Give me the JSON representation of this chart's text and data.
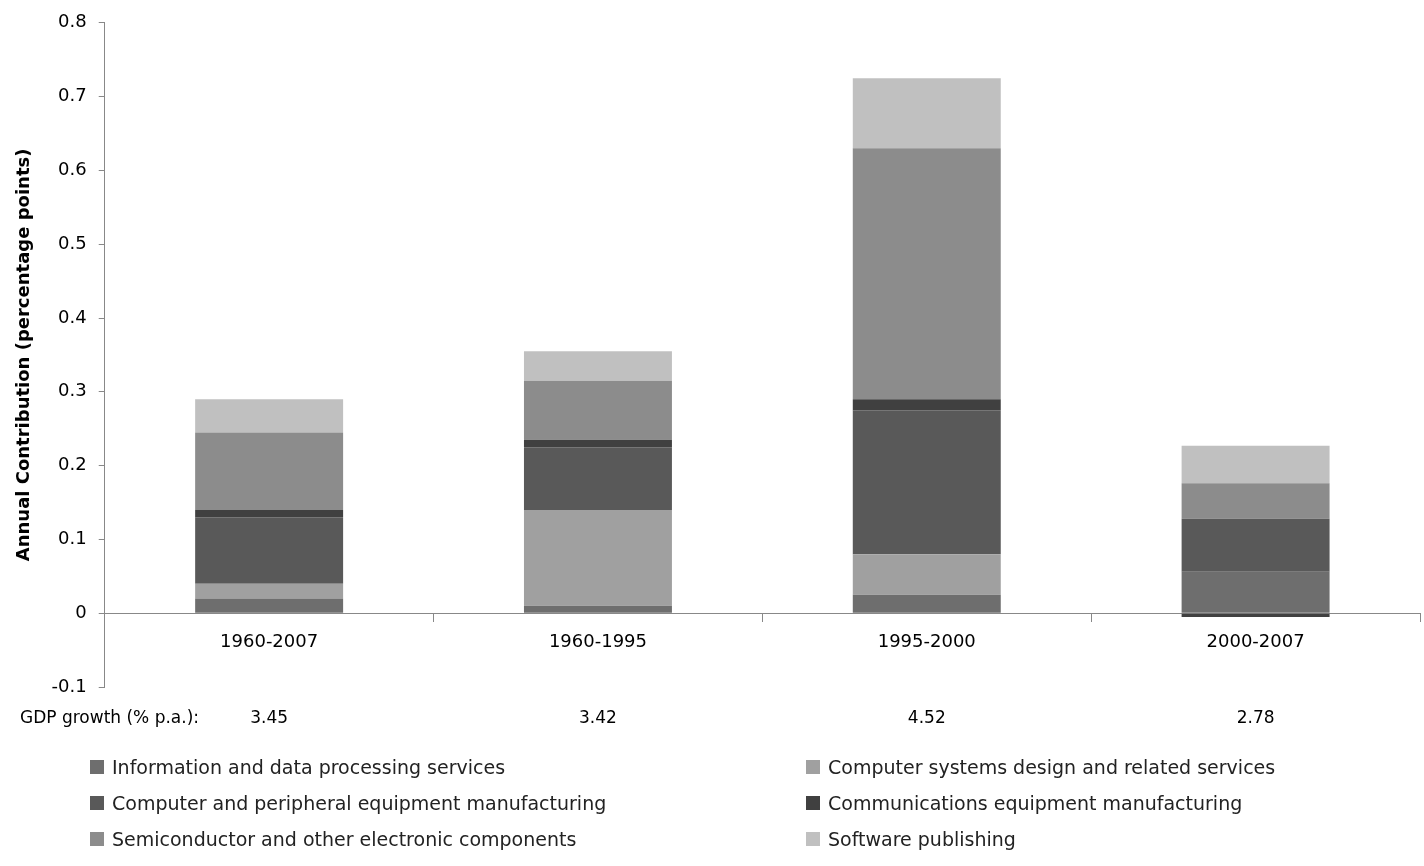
{
  "chart_data": {
    "type": "bar",
    "stacked": true,
    "ylabel": "Annual Contribution (percentage points)",
    "categories": [
      "1960-2007",
      "1960-1995",
      "1995-2000",
      "2000-2007"
    ],
    "series": [
      {
        "name": "Information and data processing services",
        "color": "#6e6e6e",
        "values": [
          0.02,
          0.01,
          0.025,
          0.056
        ]
      },
      {
        "name": "Computer systems design and related services",
        "color": "#a0a0a0",
        "values": [
          0.02,
          0.13,
          0.055,
          0
        ]
      },
      {
        "name": "Computer and peripheral equipment manufacturing",
        "color": "#595959",
        "values": [
          0.09,
          0.085,
          0.195,
          0.072
        ]
      },
      {
        "name": "Communications equipment manufacturing",
        "color": "#404040",
        "values": [
          0.01,
          0.01,
          0.015,
          -0.005
        ]
      },
      {
        "name": "Semiconductor and other electronic components",
        "color": "#8c8c8c",
        "values": [
          0.105,
          0.08,
          0.34,
          0.048
        ]
      },
      {
        "name": "Software publishing",
        "color": "#c0c0c0",
        "values": [
          0.045,
          0.04,
          0.095,
          0.051
        ]
      }
    ],
    "ylim": [
      -0.1,
      0.8
    ],
    "yticks": [
      -0.1,
      0,
      0.1,
      0.2,
      0.3,
      0.4,
      0.5,
      0.6,
      0.7,
      0.8
    ],
    "legend": "bottom",
    "annotations": [
      "GDP growth (% p.a.):",
      "3.45",
      "3.42",
      "4.52",
      "2.78"
    ]
  }
}
